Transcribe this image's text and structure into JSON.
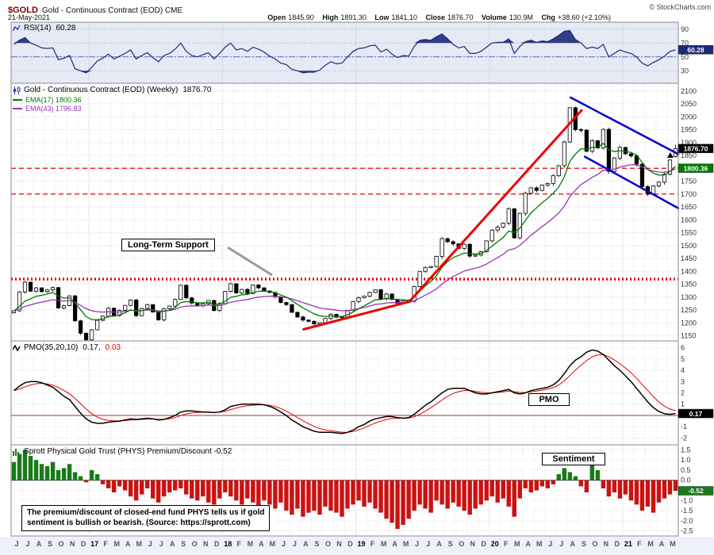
{
  "header": {
    "symbol": "$GOLD",
    "name": "Gold - Continuous Contract (EOD) CME",
    "date": "21-May-2021",
    "copyright": "© StockCharts.com",
    "quote": {
      "open_label": "Open",
      "open": "1845.90",
      "high_label": "High",
      "high": "1891.30",
      "low_label": "Low",
      "low": "1841.10",
      "close_label": "Close",
      "close": "1876.70",
      "volume_label": "Volume",
      "volume": "130.9M",
      "chg_label": "Chg",
      "chg": "+38.60 (+2.10%)"
    }
  },
  "panels": {
    "rsi": {
      "title": "RSI(14)",
      "value": "60.28"
    },
    "price": {
      "title": "Gold - Continuous Contract (EOD) (Weekly)",
      "value": "1876.70",
      "ema17_label": "EMA(17) 1800.36",
      "ema43_label": "EMA(43) 1796.83"
    },
    "pmo": {
      "title": "PMO(35,20,10)",
      "value": "0.17,",
      "signal": "0.03"
    },
    "sentiment": {
      "title": "Sprott Physical Gold Trust (PHYS) Premium/Discount -0.52"
    }
  },
  "annotations": {
    "long_term_support": "Long-Term Support",
    "pmo_label": "PMO",
    "sentiment_label": "Sentiment",
    "note_line1": "The premium/discount of closed-end fund PHYS tells us if gold",
    "note_line2": "sentiment is bullish or bearish. (Source: https://sprott.com)"
  },
  "x_axis": {
    "labels": [
      "J",
      "J",
      "A",
      "S",
      "O",
      "N",
      "D",
      "17",
      "F",
      "M",
      "A",
      "M",
      "J",
      "J",
      "A",
      "S",
      "O",
      "N",
      "D",
      "18",
      "F",
      "M",
      "A",
      "M",
      "J",
      "J",
      "A",
      "S",
      "O",
      "N",
      "D",
      "19",
      "F",
      "M",
      "A",
      "M",
      "J",
      "J",
      "A",
      "S",
      "O",
      "N",
      "D",
      "20",
      "F",
      "M",
      "A",
      "M",
      "J",
      "J",
      "A",
      "S",
      "O",
      "N",
      "D",
      "21",
      "F",
      "M",
      "A",
      "M"
    ],
    "year_indices": [
      7,
      19,
      31,
      43,
      55
    ]
  },
  "chart_data": [
    {
      "id": "rsi",
      "type": "line",
      "name": "RSI(14)",
      "ylim": [
        12,
        100
      ],
      "yticks": [
        90,
        70,
        50,
        30
      ],
      "overbought": 70,
      "oversold": 30,
      "midline": 50,
      "last": 60.28,
      "last_label": "60.28",
      "color": "#1e2a78",
      "values": [
        68,
        74,
        78,
        70,
        67,
        63,
        62,
        63,
        46,
        48,
        52,
        33,
        30,
        27,
        35,
        44,
        48,
        54,
        47,
        51,
        55,
        60,
        47,
        52,
        56,
        49,
        43,
        52,
        55,
        61,
        70,
        58,
        52,
        50,
        53,
        56,
        47,
        55,
        64,
        70,
        60,
        62,
        58,
        64,
        61,
        57,
        51,
        47,
        41,
        39,
        32,
        30,
        27,
        28,
        28,
        31,
        38,
        43,
        40,
        41,
        50,
        58,
        62,
        63,
        66,
        67,
        57,
        61,
        54,
        49,
        52,
        51,
        65,
        74,
        75,
        74,
        79,
        83,
        76,
        68,
        63,
        65,
        55,
        55,
        58,
        64,
        70,
        71,
        71,
        76,
        55,
        65,
        72,
        74,
        71,
        73,
        72,
        76,
        81,
        87,
        88,
        75,
        70,
        62,
        64,
        62,
        68,
        50,
        55,
        60,
        57,
        55,
        50,
        41,
        37,
        42,
        46,
        51,
        58,
        60.28
      ]
    },
    {
      "id": "price",
      "type": "candlestick",
      "name": "Gold - Continuous Contract (EOD) Weekly",
      "ylim": [
        1130,
        2130
      ],
      "yticks": [
        2100,
        2050,
        2000,
        1950,
        1900,
        1850,
        1800,
        1750,
        1700,
        1650,
        1600,
        1550,
        1500,
        1450,
        1400,
        1350,
        1300,
        1250,
        1200,
        1150
      ],
      "last": 1876.7,
      "last_label": "1876.70",
      "last_candle": {
        "open": 1845.9,
        "high": 1891.3,
        "low": 1841.1,
        "close": 1876.7
      },
      "up_color": "#ffffff",
      "down_color": "#000000",
      "closes": [
        1247,
        1320,
        1358,
        1323,
        1336,
        1321,
        1328,
        1337,
        1258,
        1267,
        1305,
        1208,
        1160,
        1134,
        1173,
        1210,
        1226,
        1257,
        1229,
        1249,
        1268,
        1289,
        1228,
        1256,
        1271,
        1242,
        1212,
        1255,
        1265,
        1291,
        1346,
        1297,
        1277,
        1266,
        1274,
        1287,
        1248,
        1275,
        1322,
        1352,
        1316,
        1330,
        1314,
        1347,
        1336,
        1324,
        1318,
        1301,
        1279,
        1271,
        1241,
        1223,
        1211,
        1206,
        1196,
        1201,
        1217,
        1233,
        1222,
        1223,
        1249,
        1283,
        1298,
        1304,
        1318,
        1329,
        1293,
        1312,
        1291,
        1276,
        1286,
        1284,
        1341,
        1400,
        1415,
        1419,
        1458,
        1527,
        1515,
        1507,
        1489,
        1505,
        1459,
        1463,
        1476,
        1518,
        1560,
        1572,
        1587,
        1643,
        1530,
        1625,
        1703,
        1724,
        1714,
        1735,
        1741,
        1771,
        1810,
        1902,
        2035,
        1950,
        1948,
        1866,
        1907,
        1879,
        1951,
        1788,
        1840,
        1881,
        1856,
        1848,
        1816,
        1729,
        1700,
        1732,
        1746,
        1777,
        1832,
        1876.7
      ],
      "ema": [
        {
          "name": "EMA(17)",
          "span_weeks": 17,
          "color": "#007a00",
          "last": 1800.36,
          "last_label": "1800.36",
          "show_box": true
        },
        {
          "name": "EMA(43)",
          "span_weeks": 43,
          "color": "#9933bb",
          "last": 1796.83,
          "last_label": "1796.83",
          "show_box": false
        }
      ],
      "support_lines": [
        {
          "price": 1800,
          "style": "dash",
          "width": 1.3,
          "color": "#ee0000"
        },
        {
          "price": 1700,
          "style": "dash",
          "width": 1.3,
          "color": "#ee0000"
        },
        {
          "price": 1370,
          "style": "dot",
          "width": 3.5,
          "color": "#ee0000"
        }
      ],
      "trendlines": [
        {
          "name": "falling-wedge-upper-trendline",
          "m1": 50.3,
          "p1": 2075,
          "m2": 60.0,
          "p2": 1855,
          "color": "#0000cc",
          "width": 2.5
        },
        {
          "name": "falling-wedge-lower-trendline",
          "m1": 51.6,
          "p1": 1845,
          "m2": 60.0,
          "p2": 1645,
          "color": "#0000cc",
          "width": 2.5
        },
        {
          "name": "rising-trendline-2018",
          "m1": 26.3,
          "p1": 1175,
          "m2": 35.8,
          "p2": 1282,
          "color": "#ee0000",
          "width": 3
        },
        {
          "name": "rising-trendline-2019",
          "m1": 35.8,
          "p1": 1282,
          "m2": 51.3,
          "p2": 2025,
          "color": "#ee0000",
          "width": 3
        }
      ]
    },
    {
      "id": "pmo",
      "type": "line",
      "name": "PMO(35,20,10)",
      "ylim": [
        -2.6,
        6.6
      ],
      "yticks": [
        6,
        5,
        4,
        3,
        2,
        1,
        -1,
        -2
      ],
      "last": 0.17,
      "last_label": "0.17",
      "signal_last": 0.03,
      "color": "#000000",
      "signal_color": "#e00000",
      "signal_span_weeks": 10,
      "values": [
        2.2,
        2.6,
        2.9,
        3.0,
        3.0,
        2.9,
        2.7,
        2.5,
        2.1,
        1.7,
        1.4,
        0.8,
        0.2,
        -0.3,
        -0.6,
        -0.7,
        -0.7,
        -0.6,
        -0.55,
        -0.5,
        -0.4,
        -0.3,
        -0.35,
        -0.3,
        -0.25,
        -0.3,
        -0.4,
        -0.35,
        -0.2,
        0.0,
        0.3,
        0.4,
        0.4,
        0.35,
        0.3,
        0.3,
        0.25,
        0.3,
        0.5,
        0.8,
        0.9,
        1.0,
        1.0,
        1.0,
        1.0,
        0.95,
        0.8,
        0.6,
        0.3,
        0.0,
        -0.4,
        -0.7,
        -1.0,
        -1.2,
        -1.4,
        -1.5,
        -1.5,
        -1.5,
        -1.55,
        -1.6,
        -1.5,
        -1.3,
        -1.0,
        -0.8,
        -0.5,
        -0.3,
        -0.2,
        -0.1,
        -0.1,
        -0.2,
        -0.25,
        -0.2,
        0.1,
        0.5,
        0.9,
        1.2,
        1.6,
        2.0,
        2.3,
        2.4,
        2.4,
        2.4,
        2.2,
        2.0,
        1.9,
        1.9,
        2.0,
        2.1,
        2.2,
        2.3,
        2.0,
        1.9,
        2.0,
        2.2,
        2.3,
        2.4,
        2.5,
        2.7,
        3.1,
        3.7,
        4.4,
        4.9,
        5.2,
        5.6,
        5.8,
        5.7,
        5.4,
        4.9,
        4.4,
        4.0,
        3.5,
        3.0,
        2.4,
        1.8,
        1.2,
        0.7,
        0.35,
        0.15,
        0.1,
        0.17
      ]
    },
    {
      "id": "sentiment",
      "type": "bar",
      "name": "Sprott Physical Gold Trust (PHYS) Premium/Discount",
      "ylim": [
        -2.75,
        1.75
      ],
      "yticks": [
        "1.5",
        "1.0",
        "0.5",
        "0.0",
        "-0.5",
        "-1.0",
        "-1.5",
        "-2.0",
        "-2.5"
      ],
      "last": -0.52,
      "last_label": "-0.52",
      "pos_color": "#1a7a1a",
      "neg_color": "#cc1111",
      "values": [
        0.9,
        1.3,
        1.5,
        1.2,
        1.0,
        0.8,
        0.7,
        0.9,
        0.5,
        0.6,
        0.8,
        0.4,
        0.2,
        -0.1,
        0.5,
        0.3,
        -0.2,
        -0.4,
        -0.6,
        -0.3,
        -0.5,
        -0.8,
        -1.0,
        -0.7,
        -0.4,
        -0.9,
        -1.1,
        -0.8,
        -0.6,
        -0.5,
        -0.4,
        -0.7,
        -0.9,
        -1.0,
        -0.8,
        -1.1,
        -1.2,
        -0.9,
        -0.6,
        -0.8,
        -1.0,
        -1.2,
        -0.9,
        -1.1,
        -1.3,
        -1.0,
        -1.2,
        -1.4,
        -1.1,
        -1.5,
        -1.7,
        -1.4,
        -1.8,
        -1.6,
        -1.5,
        -1.7,
        -1.3,
        -1.5,
        -1.6,
        -1.8,
        -1.4,
        -1.2,
        -1.0,
        -1.3,
        -1.1,
        -1.4,
        -1.6,
        -1.9,
        -2.1,
        -2.4,
        -2.2,
        -1.9,
        -1.5,
        -1.2,
        -1.4,
        -1.6,
        -1.0,
        -1.2,
        -1.4,
        -1.1,
        -1.3,
        -1.5,
        -1.7,
        -1.4,
        -1.2,
        -1.0,
        -0.8,
        -1.1,
        -0.9,
        -1.3,
        -1.8,
        -0.9,
        -0.4,
        -0.6,
        -0.5,
        -0.3,
        -0.4,
        -0.2,
        0.3,
        0.6,
        0.4,
        0.2,
        -0.3,
        -0.6,
        0.9,
        0.5,
        -0.4,
        -0.8,
        -0.6,
        -0.9,
        -0.7,
        -1.0,
        -1.2,
        -1.5,
        -1.3,
        -1.6,
        -1.1,
        -0.9,
        -0.7,
        -0.52
      ]
    }
  ]
}
